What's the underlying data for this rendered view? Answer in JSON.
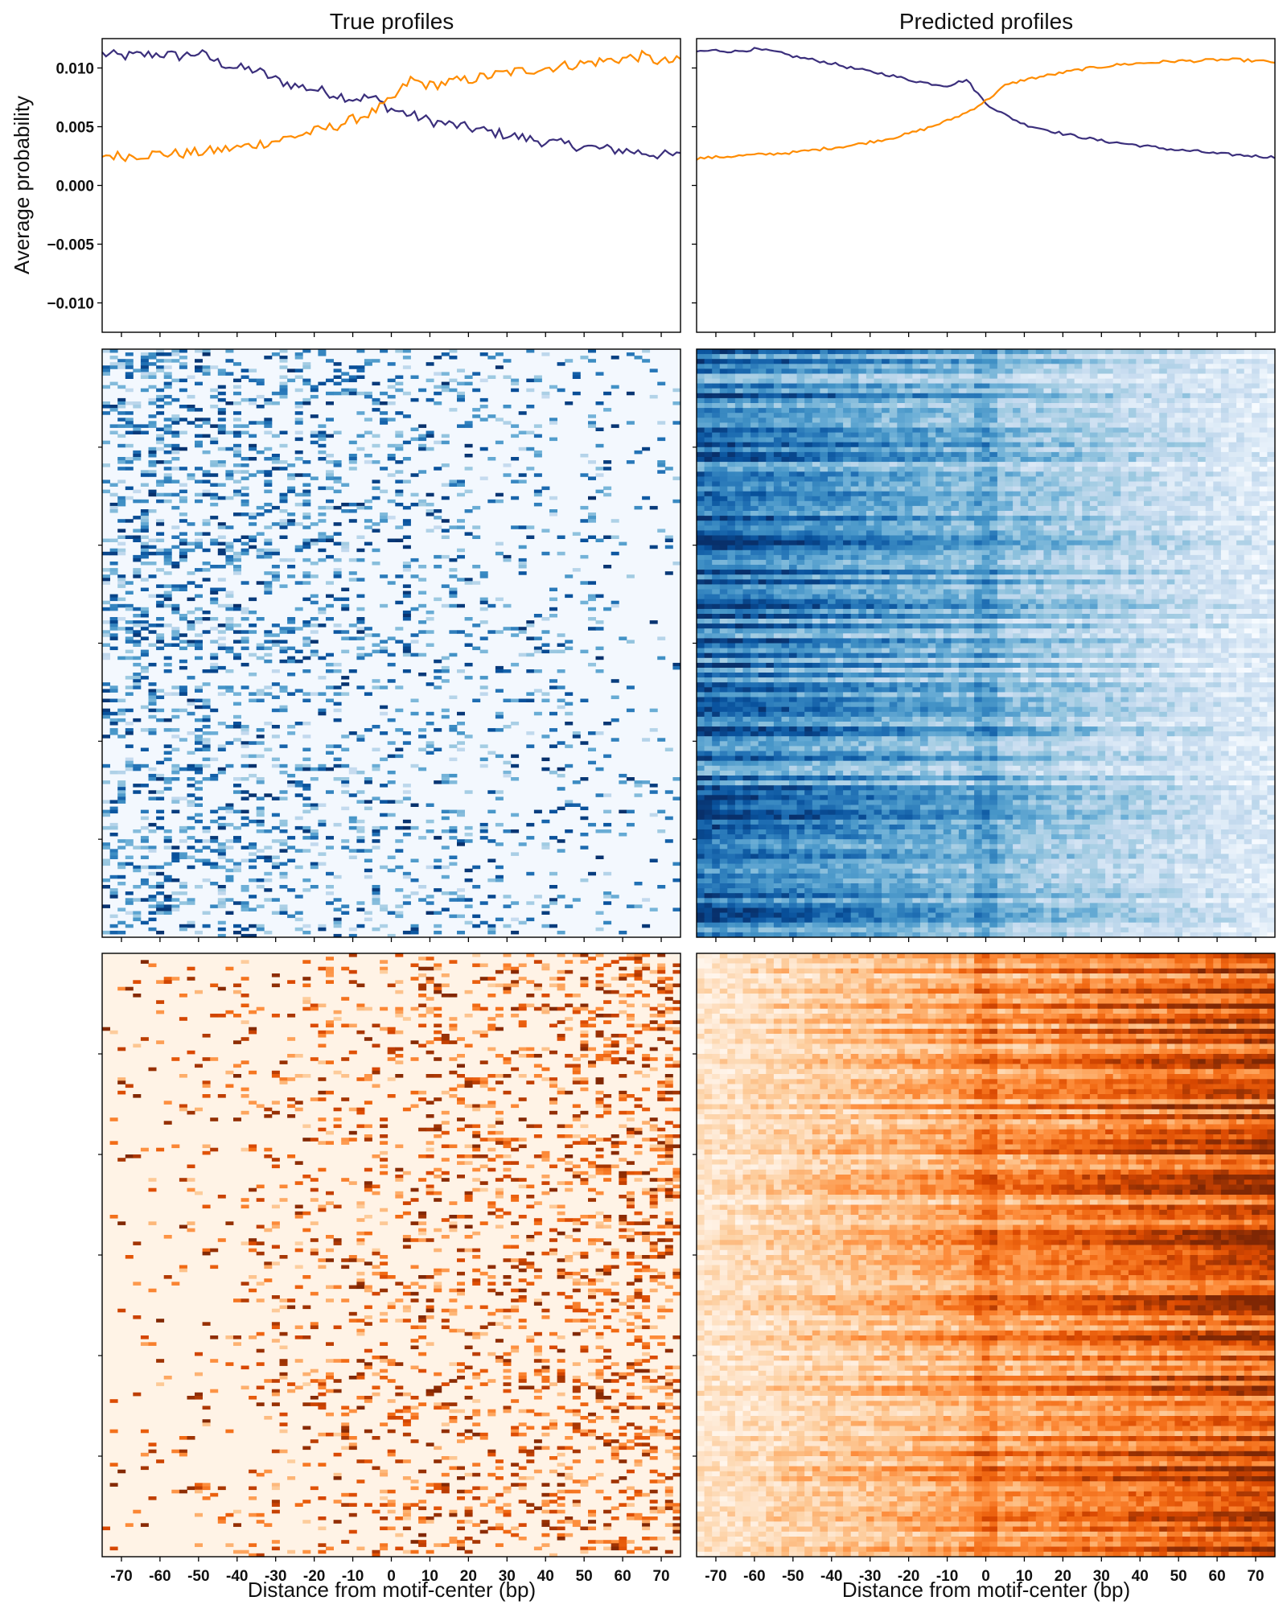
{
  "figure": {
    "left_title": "True profiles",
    "right_title": "Predicted profiles"
  },
  "chart_data": [
    {
      "id": "true-average",
      "type": "line",
      "title": "True profiles",
      "ylabel": "Average probability",
      "xlabel": "",
      "xlim": [
        -75,
        75
      ],
      "ylim": [
        -0.0125,
        0.0125
      ],
      "yticks": [
        -0.01,
        -0.005,
        0.0,
        0.005,
        0.01
      ],
      "ytick_labels": [
        "−0.010",
        "−0.005",
        "0.000",
        "0.005",
        "0.010"
      ],
      "x": [
        -75,
        -70,
        -65,
        -60,
        -55,
        -50,
        -45,
        -40,
        -35,
        -30,
        -25,
        -20,
        -15,
        -10,
        -5,
        0,
        5,
        10,
        15,
        20,
        25,
        30,
        35,
        40,
        45,
        50,
        55,
        60,
        65,
        70,
        75
      ],
      "series": [
        {
          "color": "#3b2f7c",
          "values": [
            0.0112,
            0.011,
            0.0111,
            0.0112,
            0.011,
            0.0113,
            0.0105,
            0.01,
            0.0098,
            0.009,
            0.0085,
            0.0082,
            0.0078,
            0.0074,
            0.0075,
            0.0065,
            0.006,
            0.0055,
            0.0052,
            0.0049,
            0.0046,
            0.0043,
            0.004,
            0.0037,
            0.0035,
            0.0033,
            0.0031,
            0.003,
            0.0028,
            0.0026,
            0.0025
          ]
        },
        {
          "color": "#ff8c00",
          "values": [
            0.0026,
            0.0025,
            0.0026,
            0.0027,
            0.0027,
            0.0028,
            0.003,
            0.0032,
            0.0035,
            0.0038,
            0.0042,
            0.0046,
            0.005,
            0.0056,
            0.0062,
            0.0072,
            0.009,
            0.0085,
            0.0088,
            0.009,
            0.0093,
            0.0096,
            0.0098,
            0.01,
            0.0102,
            0.0104,
            0.0106,
            0.0108,
            0.011,
            0.0105,
            0.0106
          ]
        }
      ]
    },
    {
      "id": "predicted-average",
      "type": "line",
      "title": "Predicted profiles",
      "xlabel": "",
      "xlim": [
        -75,
        75
      ],
      "ylim": [
        -0.0125,
        0.0125
      ],
      "x": [
        -75,
        -70,
        -65,
        -60,
        -55,
        -50,
        -45,
        -40,
        -35,
        -30,
        -25,
        -20,
        -15,
        -10,
        -5,
        0,
        5,
        10,
        15,
        20,
        25,
        30,
        35,
        40,
        45,
        50,
        55,
        60,
        65,
        70,
        75
      ],
      "series": [
        {
          "color": "#3b2f7c",
          "values": [
            0.0114,
            0.0115,
            0.0114,
            0.0116,
            0.0114,
            0.011,
            0.0107,
            0.0104,
            0.01,
            0.0097,
            0.0094,
            0.009,
            0.0087,
            0.0085,
            0.009,
            0.007,
            0.006,
            0.0052,
            0.0048,
            0.0044,
            0.0041,
            0.0038,
            0.0036,
            0.0034,
            0.0032,
            0.003,
            0.0029,
            0.0027,
            0.0026,
            0.0025,
            0.0024
          ]
        },
        {
          "color": "#ff8c00",
          "values": [
            0.0023,
            0.0024,
            0.0025,
            0.0026,
            0.0027,
            0.0028,
            0.003,
            0.0032,
            0.0034,
            0.0037,
            0.004,
            0.0044,
            0.0049,
            0.0055,
            0.0062,
            0.0072,
            0.0085,
            0.009,
            0.0093,
            0.0096,
            0.0099,
            0.0101,
            0.0103,
            0.0104,
            0.0105,
            0.0106,
            0.0106,
            0.0107,
            0.0107,
            0.0106,
            0.0105
          ]
        }
      ]
    },
    {
      "id": "true-heatmap-blue",
      "type": "heatmap",
      "colormap": "Blues",
      "x_range": [
        -75,
        75
      ],
      "description_values": {
        "left_intensity": 0.55,
        "right_intensity": 0.08,
        "sparse": true
      }
    },
    {
      "id": "predicted-heatmap-blue",
      "type": "heatmap",
      "colormap": "Blues",
      "x_range": [
        -75,
        75
      ],
      "description_values": {
        "left_intensity": 0.75,
        "right_intensity": 0.12,
        "sparse": false
      }
    },
    {
      "id": "true-heatmap-orange",
      "type": "heatmap",
      "colormap": "Oranges",
      "x_range": [
        -75,
        75
      ],
      "xlabel": "Distance from motif-center (bp)",
      "xticks": [
        -70,
        -60,
        -50,
        -40,
        -30,
        -20,
        -10,
        0,
        10,
        20,
        30,
        40,
        50,
        60,
        70
      ],
      "xtick_labels": [
        "-70",
        "-60",
        "-50",
        "-40",
        "-30",
        "-20",
        "-10",
        "0",
        "10",
        "20",
        "30",
        "40",
        "50",
        "60",
        "70"
      ],
      "description_values": {
        "left_intensity": 0.05,
        "right_intensity": 0.5,
        "sparse": true
      }
    },
    {
      "id": "predicted-heatmap-orange",
      "type": "heatmap",
      "colormap": "Oranges",
      "x_range": [
        -75,
        75
      ],
      "xlabel": "Distance from motif-center (bp)",
      "xticks": [
        -70,
        -60,
        -50,
        -40,
        -30,
        -20,
        -10,
        0,
        10,
        20,
        30,
        40,
        50,
        60,
        70
      ],
      "xtick_labels": [
        "-70",
        "-60",
        "-50",
        "-40",
        "-30",
        "-20",
        "-10",
        "0",
        "10",
        "20",
        "30",
        "40",
        "50",
        "60",
        "70"
      ],
      "description_values": {
        "left_intensity": 0.12,
        "right_intensity": 0.75,
        "sparse": false
      }
    }
  ]
}
